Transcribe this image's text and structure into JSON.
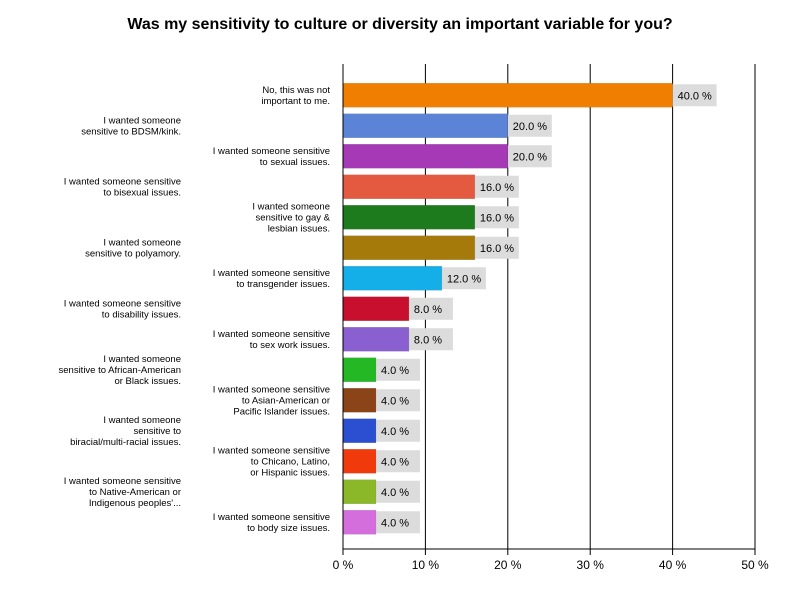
{
  "chart_data": {
    "type": "bar",
    "orientation": "horizontal",
    "title": "Was my sensitivity to culture or diversity an important variable for you?",
    "xlim": [
      0,
      50
    ],
    "ticks": [
      0,
      10,
      20,
      30,
      40,
      50
    ],
    "tick_labels": [
      "0 %",
      "10 %",
      "20 %",
      "30 %",
      "40 %",
      "50 %"
    ],
    "grid": true,
    "bars": [
      {
        "label": [
          "No, this was not",
          "important to me."
        ],
        "value": 40.0,
        "value_label": "40.0 %",
        "color": "#f07f00",
        "side": "right"
      },
      {
        "label": [
          "I wanted someone",
          "sensitive to BDSM/kink."
        ],
        "value": 20.0,
        "value_label": "20.0 %",
        "color": "#5b84d6",
        "side": "left"
      },
      {
        "label": [
          "I wanted someone sensitive",
          "to sexual issues."
        ],
        "value": 20.0,
        "value_label": "20.0 %",
        "color": "#a63ab6",
        "side": "right"
      },
      {
        "label": [
          "I wanted someone sensitive",
          "to bisexual issues."
        ],
        "value": 16.0,
        "value_label": "16.0 %",
        "color": "#e45a40",
        "side": "left"
      },
      {
        "label": [
          "I wanted someone",
          "sensitive to gay &",
          "lesbian issues."
        ],
        "value": 16.0,
        "value_label": "16.0 %",
        "color": "#1d7a1d",
        "side": "right"
      },
      {
        "label": [
          "I wanted someone",
          "sensitive to polyamory."
        ],
        "value": 16.0,
        "value_label": "16.0 %",
        "color": "#a67a0a",
        "side": "left"
      },
      {
        "label": [
          "I wanted someone sensitive",
          "to transgender issues."
        ],
        "value": 12.0,
        "value_label": "12.0 %",
        "color": "#14aee8",
        "side": "right"
      },
      {
        "label": [
          "I wanted someone sensitive",
          "to disability issues."
        ],
        "value": 8.0,
        "value_label": "8.0 %",
        "color": "#c8102e",
        "side": "left"
      },
      {
        "label": [
          "I wanted someone sensitive",
          "to sex work issues."
        ],
        "value": 8.0,
        "value_label": "8.0 %",
        "color": "#8a60d0",
        "side": "right"
      },
      {
        "label": [
          "I wanted someone",
          "sensitive to African-American",
          "or Black issues."
        ],
        "value": 4.0,
        "value_label": "4.0 %",
        "color": "#24b824",
        "side": "left"
      },
      {
        "label": [
          "I wanted someone sensitive",
          "to Asian-American or",
          "Pacific Islander issues."
        ],
        "value": 4.0,
        "value_label": "4.0 %",
        "color": "#8a4418",
        "side": "right"
      },
      {
        "label": [
          "I wanted someone",
          "sensitive to",
          "biracial/multi-racial issues."
        ],
        "value": 4.0,
        "value_label": "4.0 %",
        "color": "#2a4fd0",
        "side": "left"
      },
      {
        "label": [
          "I wanted someone sensitive",
          "to Chicano, Latino,",
          "or Hispanic issues."
        ],
        "value": 4.0,
        "value_label": "4.0 %",
        "color": "#f03a0c",
        "side": "right"
      },
      {
        "label": [
          "I wanted someone sensitive",
          "to Native-American or",
          "Indigenous peoples'..."
        ],
        "value": 4.0,
        "value_label": "4.0 %",
        "color": "#8ab828",
        "side": "left"
      },
      {
        "label": [
          "I wanted someone sensitive",
          "to body size issues."
        ],
        "value": 4.0,
        "value_label": "4.0 %",
        "color": "#d46edc",
        "side": "right"
      }
    ]
  }
}
